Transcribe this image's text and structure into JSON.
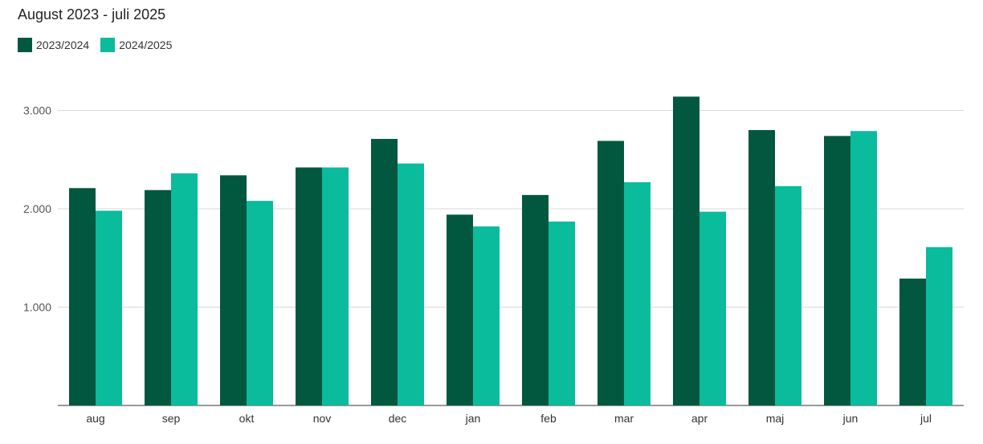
{
  "chart_data": {
    "type": "bar",
    "title": "August 2023 - juli 2025",
    "categories": [
      "aug",
      "sep",
      "okt",
      "nov",
      "dec",
      "jan",
      "feb",
      "mar",
      "apr",
      "maj",
      "jun",
      "jul"
    ],
    "series": [
      {
        "name": "2023/2024",
        "color": "#02583f",
        "values": [
          2210,
          2190,
          2340,
          2420,
          2710,
          1940,
          2140,
          2690,
          3140,
          2800,
          2740,
          1290
        ]
      },
      {
        "name": "2024/2025",
        "color": "#0abb9c",
        "values": [
          1980,
          2360,
          2080,
          2420,
          2460,
          1820,
          1870,
          2270,
          1970,
          2230,
          2790,
          1610
        ]
      }
    ],
    "yticks": [
      {
        "value": 1000,
        "label": "1.000"
      },
      {
        "value": 2000,
        "label": "2.000"
      },
      {
        "value": 3000,
        "label": "3.000"
      }
    ],
    "ylim": [
      0,
      3500
    ],
    "grid": true,
    "legend_position": "top-left"
  }
}
